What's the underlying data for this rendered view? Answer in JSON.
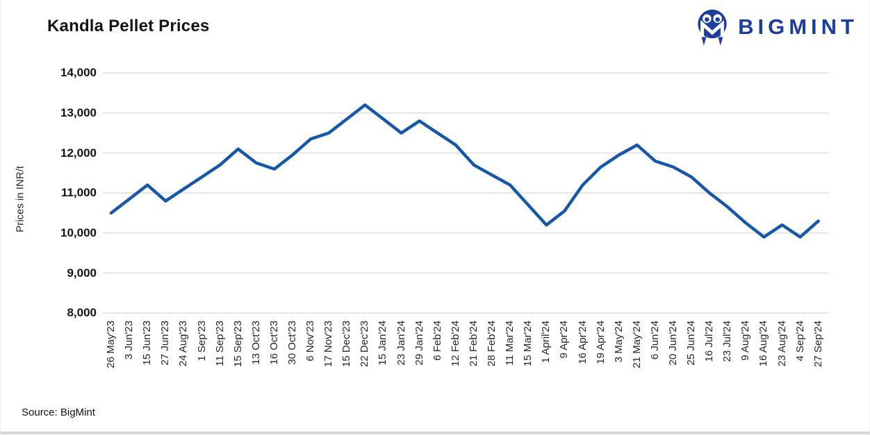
{
  "header": {
    "title": "Kandla Pellet Prices",
    "brand": "BIGMINT"
  },
  "footer": {
    "source": "Source: BigMint"
  },
  "colors": {
    "line": "#1657a8",
    "grid": "#d9d9d9",
    "brand_blue": "#1e3e9c"
  },
  "chart_data": {
    "type": "line",
    "title": "Kandla Pellet Prices",
    "xlabel": "",
    "ylabel": "Prices in INR/t",
    "ylim": [
      8000,
      14000
    ],
    "grid": true,
    "legend_position": "none",
    "line_color": "#1657a8",
    "ytick_values": [
      14000,
      13000,
      12000,
      11000,
      10000,
      9000,
      8000
    ],
    "ytick_labels": [
      "14,000",
      "13,000",
      "12,000",
      "11,000",
      "10,000",
      "9,000",
      "8,000"
    ],
    "categories": [
      "26 May'23",
      "3 Jun'23",
      "15 Jun'23",
      "27 Jun'23",
      "24 Aug'23",
      "1 Sep'23",
      "11 Sep'23",
      "15 Sep'23",
      "13 Oct'23",
      "16 Oct'23",
      "30 Oct'23",
      "6 Nov'23",
      "17 Nov'23",
      "15 Dec'23",
      "22 Dec'23",
      "15 Jan'24",
      "23 Jan'24",
      "29 Jan'24",
      "6 Feb'24",
      "12 Feb'24",
      "21 Feb'24",
      "28 Feb'24",
      "11 Mar'24",
      "15 Mar'24",
      "1 April'24",
      "9 Apr'24",
      "16 Apr'24",
      "19 Apr'24",
      "3 May'24",
      "21 May'24",
      "6 Jun'24",
      "20 Jun'24",
      "25 Jun'24",
      "16 Jul'24",
      "23 Jul'24",
      "9 Aug'24",
      "16 Aug'24",
      "23 Aug'24",
      "4 Sep'24",
      "27 Sep'24"
    ],
    "series": [
      {
        "name": "Kandla Pellet Prices",
        "values": [
          10500,
          10850,
          11200,
          10800,
          11100,
          11400,
          11700,
          12100,
          11750,
          11600,
          11950,
          12350,
          12500,
          12850,
          13200,
          12850,
          12500,
          12800,
          12500,
          12200,
          11700,
          11450,
          11200,
          10700,
          10200,
          10550,
          11200,
          11650,
          11950,
          12200,
          11800,
          11650,
          11400,
          11000,
          10650,
          10250,
          9900,
          10200,
          9900,
          10300
        ]
      }
    ]
  }
}
